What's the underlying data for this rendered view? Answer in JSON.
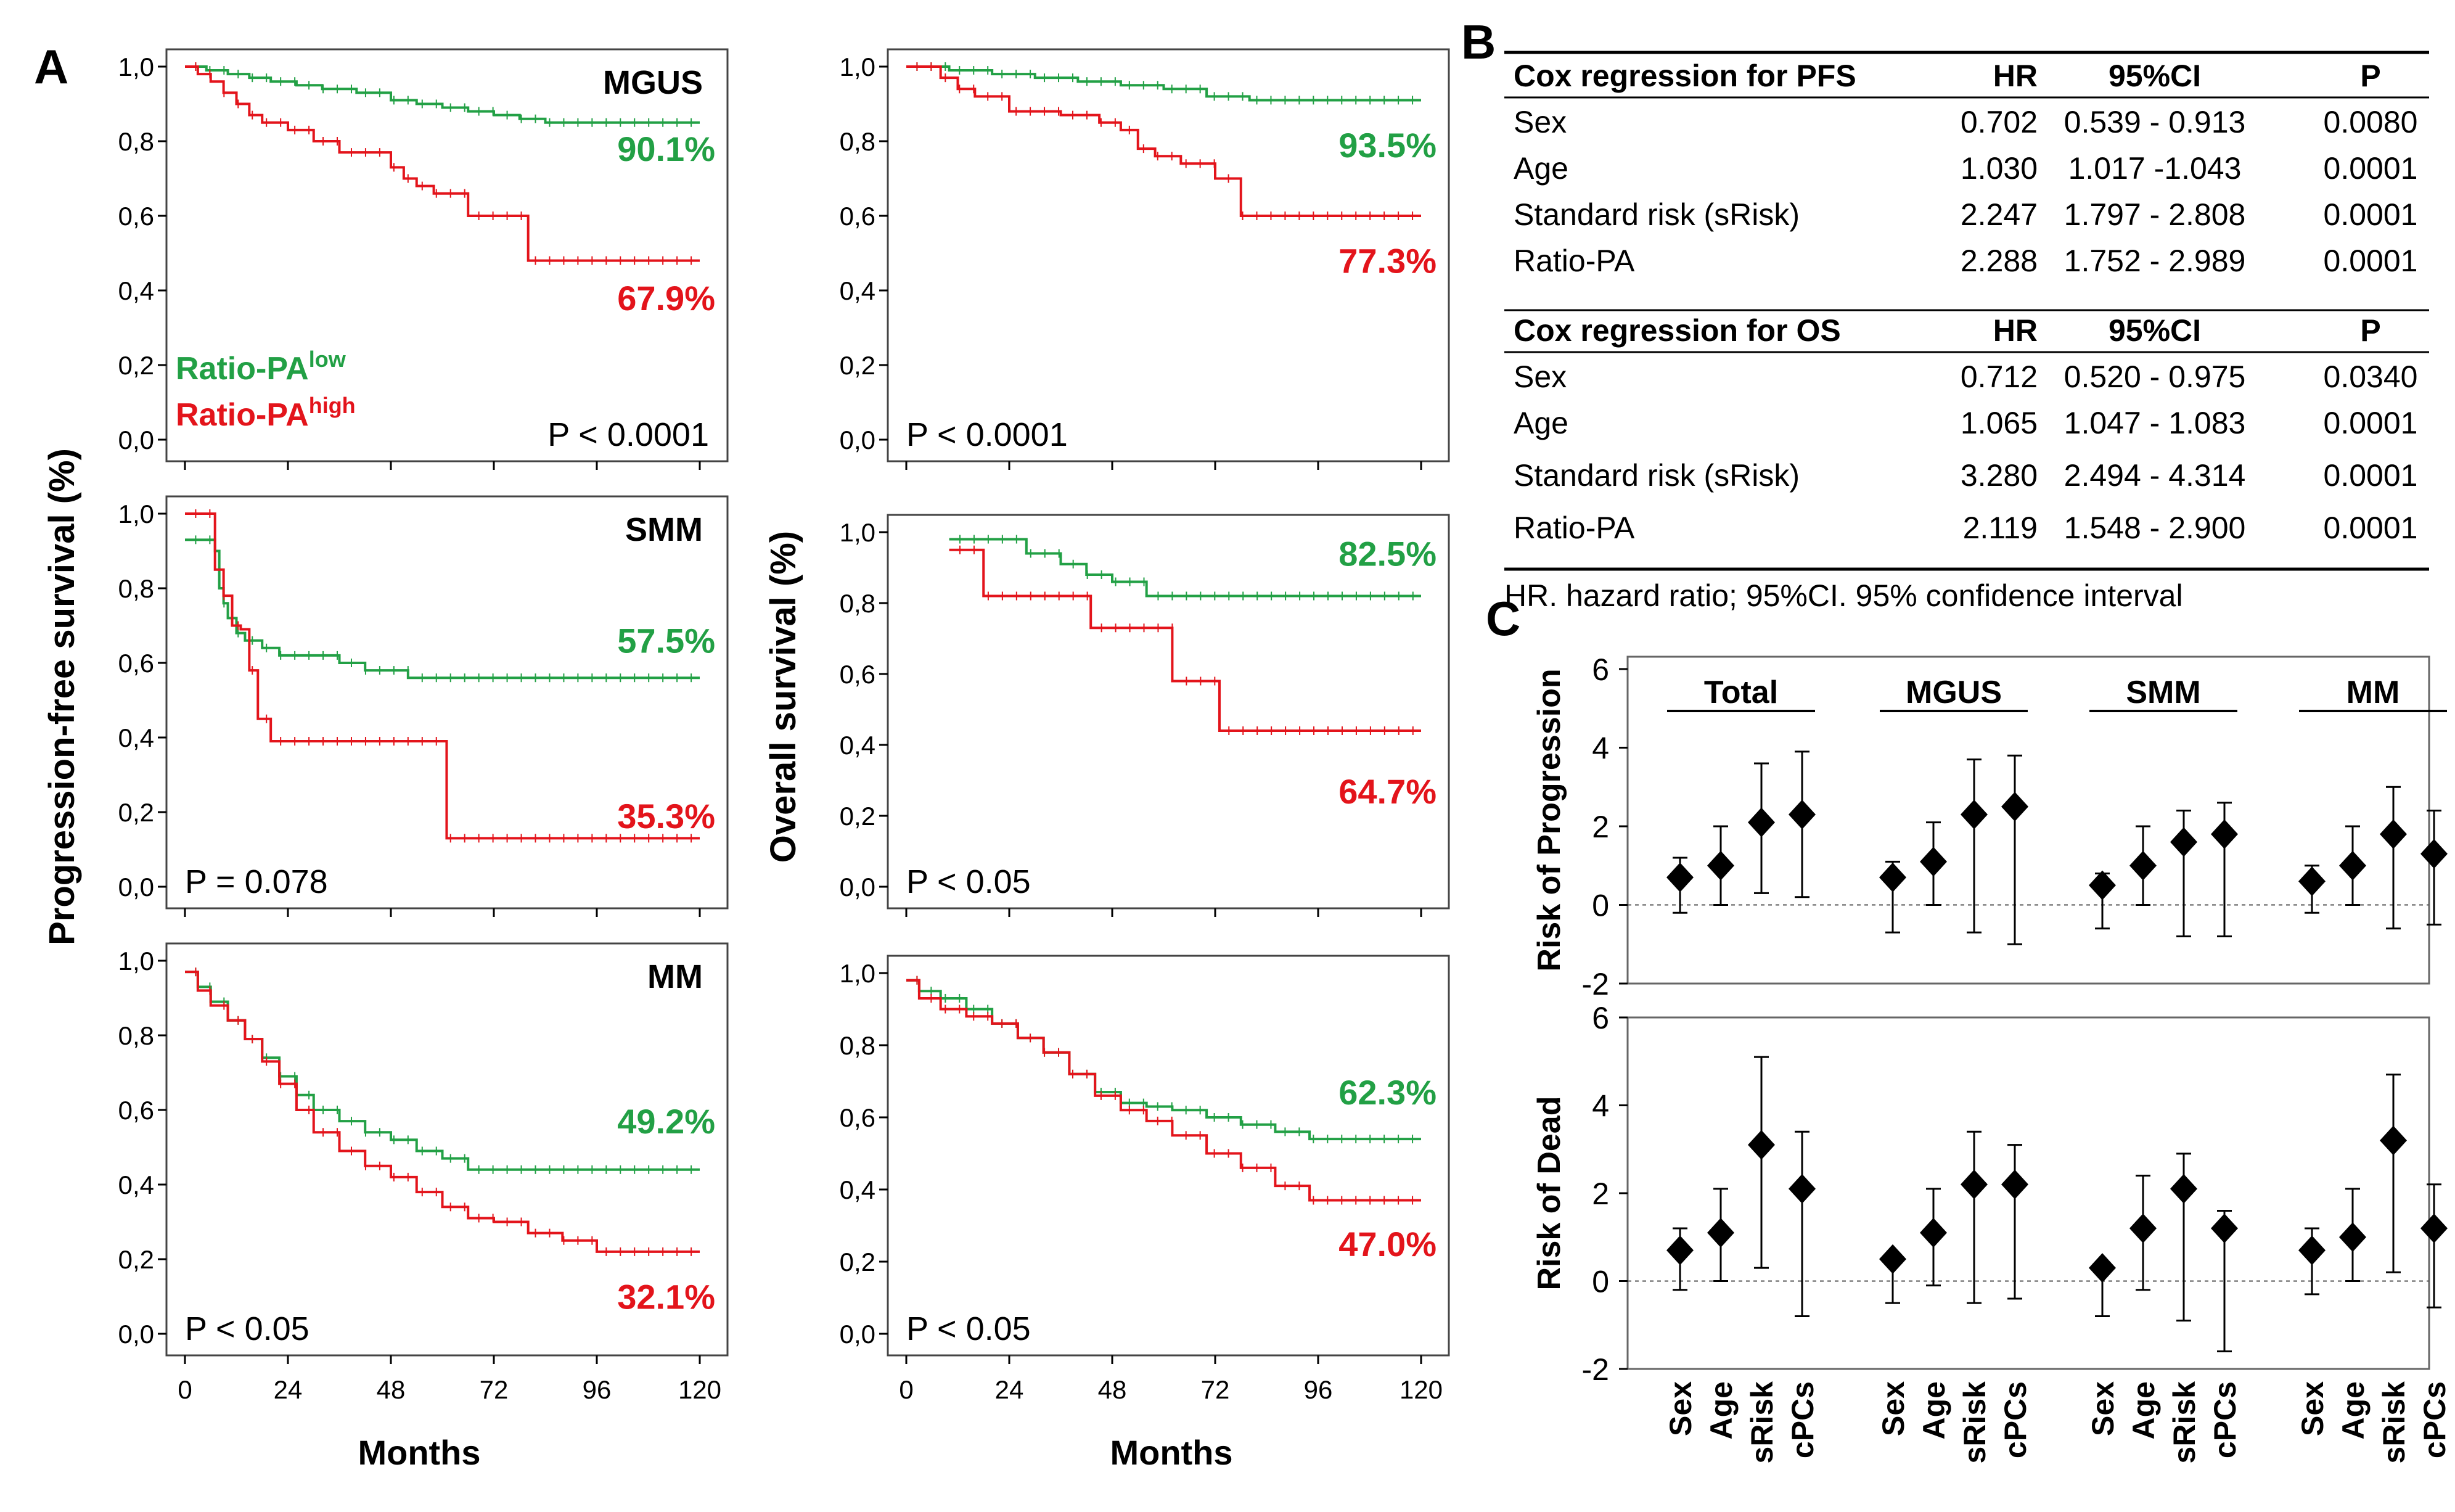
{
  "colors": {
    "low": "#22a045",
    "high": "#e3141b",
    "dark": "#000000"
  },
  "panel_labels": {
    "a": "A",
    "b": "B",
    "c": "C"
  },
  "legend": {
    "low_base": "Ratio-PA",
    "low_sup": "low",
    "high_base": "Ratio-PA",
    "high_sup": "high"
  },
  "axis_titles": {
    "pfs": "Progression-free survival (%)",
    "os": "Overall survival (%)",
    "months": "Months"
  },
  "chart_data": [
    {
      "type": "line",
      "panel": "A",
      "title": "MGUS",
      "endpoint": "Progression-free survival (%)",
      "xlabel": "Months",
      "ylabel": "Progression-free survival (%)",
      "xlim": [
        0,
        120
      ],
      "ylim": [
        0,
        1
      ],
      "x_ticks": [
        "0",
        "24",
        "48",
        "72",
        "96",
        "120"
      ],
      "y_ticks": [
        "0,0",
        "0,2",
        "0,4",
        "0,6",
        "0,8",
        "1,0"
      ],
      "pvalue": "P < 0.0001",
      "series": [
        {
          "name": "Ratio-PA low",
          "color": "#22a045",
          "label": "90.1%",
          "x": [
            0,
            5,
            10,
            15,
            20,
            26,
            32,
            40,
            48,
            54,
            60,
            66,
            72,
            78,
            84,
            120
          ],
          "y": [
            1.0,
            0.99,
            0.98,
            0.97,
            0.96,
            0.95,
            0.94,
            0.93,
            0.91,
            0.9,
            0.89,
            0.88,
            0.87,
            0.86,
            0.85,
            0.85
          ]
        },
        {
          "name": "Ratio-PA high",
          "color": "#e3141b",
          "label": "67.9%",
          "x": [
            0,
            3,
            6,
            9,
            12,
            15,
            18,
            24,
            30,
            36,
            48,
            51,
            54,
            58,
            66,
            72,
            80,
            120
          ],
          "y": [
            1.0,
            0.98,
            0.96,
            0.93,
            0.9,
            0.87,
            0.85,
            0.83,
            0.8,
            0.77,
            0.73,
            0.7,
            0.68,
            0.66,
            0.6,
            0.6,
            0.48,
            0.48
          ]
        }
      ]
    },
    {
      "type": "line",
      "panel": "A",
      "title": "",
      "endpoint": "Overall survival (%)",
      "xlabel": "Months",
      "ylabel": "Overall survival (%)",
      "xlim": [
        0,
        120
      ],
      "ylim": [
        0,
        1
      ],
      "x_ticks": [
        "0",
        "24",
        "48",
        "72",
        "96",
        "120"
      ],
      "y_ticks": [
        "0,0",
        "0,2",
        "0,4",
        "0,6",
        "0,8",
        "1,0"
      ],
      "pvalue": "P < 0.0001",
      "series": [
        {
          "name": "Ratio-PA low",
          "color": "#22a045",
          "label": "93.5%",
          "x": [
            0,
            10,
            20,
            30,
            40,
            50,
            60,
            70,
            80,
            120
          ],
          "y": [
            1.0,
            0.99,
            0.98,
            0.97,
            0.96,
            0.95,
            0.94,
            0.92,
            0.91,
            0.91
          ]
        },
        {
          "name": "Ratio-PA high",
          "color": "#e3141b",
          "label": "77.3%",
          "x": [
            0,
            8,
            12,
            16,
            24,
            36,
            45,
            50,
            54,
            58,
            64,
            72,
            78,
            120
          ],
          "y": [
            1.0,
            0.97,
            0.94,
            0.92,
            0.88,
            0.87,
            0.85,
            0.83,
            0.78,
            0.76,
            0.74,
            0.7,
            0.6,
            0.6
          ]
        }
      ]
    },
    {
      "type": "line",
      "panel": "A",
      "title": "SMM",
      "endpoint": "Progression-free survival (%)",
      "xlabel": "Months",
      "ylabel": "Progression-free survival (%)",
      "xlim": [
        0,
        120
      ],
      "ylim": [
        0,
        1
      ],
      "x_ticks": [
        "0",
        "24",
        "48",
        "72",
        "96",
        "120"
      ],
      "y_ticks": [
        "0,0",
        "0,2",
        "0,4",
        "0,6",
        "0,8",
        "1,0"
      ],
      "pvalue": "P = 0.078",
      "series": [
        {
          "name": "Ratio-PA low",
          "color": "#22a045",
          "label": "57.5%",
          "x": [
            0,
            5,
            7,
            8,
            9,
            10,
            12,
            14,
            18,
            22,
            26,
            32,
            36,
            42,
            48,
            52,
            120
          ],
          "y": [
            0.93,
            0.93,
            0.9,
            0.8,
            0.76,
            0.72,
            0.68,
            0.66,
            0.64,
            0.62,
            0.62,
            0.62,
            0.6,
            0.58,
            0.58,
            0.56,
            0.56
          ]
        },
        {
          "name": "Ratio-PA high",
          "color": "#e3141b",
          "label": "35.3%",
          "x": [
            0,
            6,
            7,
            9,
            11,
            13,
            15,
            17,
            20,
            23,
            60,
            61,
            120
          ],
          "y": [
            1.0,
            1.0,
            0.85,
            0.78,
            0.7,
            0.69,
            0.58,
            0.45,
            0.39,
            0.39,
            0.39,
            0.13,
            0.13
          ]
        }
      ]
    },
    {
      "type": "line",
      "panel": "A",
      "title": "",
      "endpoint": "Overall survival (%)",
      "xlabel": "Months",
      "ylabel": "Overall survival (%)",
      "xlim": [
        0,
        120
      ],
      "ylim": [
        0,
        1
      ],
      "x_ticks": [
        "0",
        "24",
        "48",
        "72",
        "96",
        "120"
      ],
      "y_ticks": [
        "0,0",
        "0,2",
        "0,4",
        "0,6",
        "0,8",
        "1,0"
      ],
      "pvalue": "P < 0.05",
      "series": [
        {
          "name": "Ratio-PA low",
          "color": "#22a045",
          "label": "82.5%",
          "x": [
            10,
            24,
            28,
            36,
            42,
            48,
            56,
            120
          ],
          "y": [
            0.98,
            0.98,
            0.94,
            0.91,
            0.88,
            0.86,
            0.82,
            0.82
          ]
        },
        {
          "name": "Ratio-PA high",
          "color": "#e3141b",
          "label": "64.7%",
          "x": [
            10,
            17,
            18,
            42,
            43,
            61,
            62,
            72,
            73,
            120
          ],
          "y": [
            0.95,
            0.95,
            0.82,
            0.82,
            0.73,
            0.73,
            0.58,
            0.58,
            0.44,
            0.44
          ]
        }
      ]
    },
    {
      "type": "line",
      "panel": "A",
      "title": "MM",
      "endpoint": "Progression-free survival (%)",
      "xlabel": "Months",
      "ylabel": "Progression-free survival (%)",
      "xlim": [
        0,
        120
      ],
      "ylim": [
        0,
        1
      ],
      "x_ticks": [
        "0",
        "24",
        "48",
        "72",
        "96",
        "120"
      ],
      "y_ticks": [
        "0,0",
        "0,2",
        "0,4",
        "0,6",
        "0,8",
        "1,0"
      ],
      "pvalue": "P < 0.05",
      "series": [
        {
          "name": "Ratio-PA low",
          "color": "#22a045",
          "label": "49.2%",
          "x": [
            0,
            3,
            6,
            10,
            14,
            18,
            22,
            26,
            30,
            36,
            42,
            48,
            54,
            60,
            66,
            120
          ],
          "y": [
            0.97,
            0.93,
            0.89,
            0.84,
            0.79,
            0.74,
            0.69,
            0.64,
            0.6,
            0.57,
            0.54,
            0.52,
            0.49,
            0.47,
            0.44,
            0.44
          ]
        },
        {
          "name": "Ratio-PA high",
          "color": "#e3141b",
          "label": "32.1%",
          "x": [
            0,
            3,
            6,
            10,
            14,
            18,
            22,
            26,
            30,
            36,
            42,
            48,
            54,
            60,
            66,
            72,
            80,
            88,
            96,
            120
          ],
          "y": [
            0.97,
            0.92,
            0.88,
            0.84,
            0.79,
            0.73,
            0.67,
            0.6,
            0.54,
            0.49,
            0.45,
            0.42,
            0.38,
            0.34,
            0.31,
            0.3,
            0.27,
            0.25,
            0.22,
            0.22
          ]
        }
      ]
    },
    {
      "type": "line",
      "panel": "A",
      "title": "",
      "endpoint": "Overall survival (%)",
      "xlabel": "Months",
      "ylabel": "Overall survival (%)",
      "xlim": [
        0,
        120
      ],
      "ylim": [
        0,
        1
      ],
      "x_ticks": [
        "0",
        "24",
        "48",
        "72",
        "96",
        "120"
      ],
      "y_ticks": [
        "0,0",
        "0,2",
        "0,4",
        "0,6",
        "0,8",
        "1,0"
      ],
      "pvalue": "P < 0.05",
      "series": [
        {
          "name": "Ratio-PA low",
          "color": "#22a045",
          "label": "62.3%",
          "x": [
            0,
            3,
            8,
            14,
            20,
            26,
            32,
            38,
            44,
            50,
            56,
            62,
            70,
            78,
            86,
            94,
            120
          ],
          "y": [
            0.98,
            0.95,
            0.93,
            0.9,
            0.86,
            0.82,
            0.78,
            0.72,
            0.67,
            0.64,
            0.63,
            0.62,
            0.6,
            0.58,
            0.56,
            0.54,
            0.54
          ]
        },
        {
          "name": "Ratio-PA high",
          "color": "#e3141b",
          "label": "47.0%",
          "x": [
            0,
            3,
            8,
            14,
            20,
            26,
            32,
            38,
            44,
            50,
            56,
            62,
            70,
            78,
            86,
            94,
            120
          ],
          "y": [
            0.98,
            0.93,
            0.9,
            0.88,
            0.86,
            0.82,
            0.78,
            0.72,
            0.66,
            0.62,
            0.59,
            0.55,
            0.5,
            0.46,
            0.41,
            0.37,
            0.37
          ]
        }
      ]
    },
    {
      "type": "table",
      "panel": "B",
      "sections": [
        {
          "header": [
            "Cox regression for PFS",
            "HR",
            "95%CI",
            "P"
          ],
          "rows": [
            [
              "Sex",
              "0.702",
              "0.539 - 0.913",
              "0.0080"
            ],
            [
              "Age",
              "1.030",
              "1.017 -1.043",
              "0.0001"
            ],
            [
              "Standard risk (sRisk)",
              "2.247",
              "1.797 - 2.808",
              "0.0001"
            ],
            [
              "Ratio-PA",
              "2.288",
              "1.752 - 2.989",
              "0.0001"
            ]
          ]
        },
        {
          "header": [
            "Cox regression for OS",
            "HR",
            "95%CI",
            "P"
          ],
          "rows": [
            [
              "Sex",
              "0.712",
              "0.520 - 0.975",
              "0.0340"
            ],
            [
              "Age",
              "1.065",
              "1.047 - 1.083",
              "0.0001"
            ],
            [
              "Standard risk (sRisk)",
              "3.280",
              "2.494 - 4.314",
              "0.0001"
            ],
            [
              "Ratio-PA",
              "2.119",
              "1.548 - 2.900",
              "0.0001"
            ]
          ]
        }
      ],
      "footnote": "HR. hazard ratio; 95%CI. 95% confidence interval"
    },
    {
      "type": "scatter",
      "panel": "C",
      "groups": [
        "Total",
        "MGUS",
        "SMM",
        "MM"
      ],
      "categories": [
        "Sex",
        "Age",
        "sRisk",
        "cPCs"
      ],
      "ylim": [
        -2,
        6
      ],
      "y_ticks": [
        "-2",
        "0",
        "2",
        "4",
        "6"
      ],
      "subplots": [
        {
          "ylabel": "Risk of Progression",
          "series": [
            {
              "group": "Total",
              "values": [
                0.7,
                1.0,
                2.1,
                2.3
              ],
              "lower": [
                -0.2,
                0.0,
                0.3,
                0.2
              ],
              "upper": [
                1.2,
                2.0,
                3.6,
                3.9
              ]
            },
            {
              "group": "MGUS",
              "values": [
                0.7,
                1.1,
                2.3,
                2.5
              ],
              "lower": [
                -0.7,
                0.0,
                -0.7,
                -1.0
              ],
              "upper": [
                1.1,
                2.1,
                3.7,
                3.8
              ]
            },
            {
              "group": "SMM",
              "values": [
                0.5,
                1.0,
                1.6,
                1.8
              ],
              "lower": [
                -0.6,
                0.0,
                -0.8,
                -0.8
              ],
              "upper": [
                0.8,
                2.0,
                2.4,
                2.6
              ]
            },
            {
              "group": "MM",
              "values": [
                0.6,
                1.0,
                1.8,
                1.3
              ],
              "lower": [
                -0.2,
                0.0,
                -0.6,
                -0.5
              ],
              "upper": [
                1.0,
                2.0,
                3.0,
                2.4
              ]
            }
          ]
        },
        {
          "ylabel": "Risk of Dead",
          "series": [
            {
              "group": "Total",
              "values": [
                0.7,
                1.1,
                3.1,
                2.1
              ],
              "lower": [
                -0.2,
                0.0,
                0.3,
                -0.8
              ],
              "upper": [
                1.2,
                2.1,
                5.1,
                3.4
              ]
            },
            {
              "group": "MGUS",
              "values": [
                0.5,
                1.1,
                2.2,
                2.2
              ],
              "lower": [
                -0.5,
                -0.1,
                -0.5,
                -0.4
              ],
              "upper": [
                0.6,
                2.1,
                3.4,
                3.1
              ]
            },
            {
              "group": "SMM",
              "values": [
                0.3,
                1.2,
                2.1,
                1.2
              ],
              "lower": [
                -0.8,
                -0.2,
                -0.9,
                -1.6
              ],
              "upper": [
                0.4,
                2.4,
                2.9,
                1.6
              ]
            },
            {
              "group": "MM",
              "values": [
                0.7,
                1.0,
                3.2,
                1.2
              ],
              "lower": [
                -0.3,
                0.0,
                0.2,
                -0.6
              ],
              "upper": [
                1.2,
                2.1,
                4.7,
                2.2
              ]
            }
          ]
        }
      ]
    }
  ]
}
